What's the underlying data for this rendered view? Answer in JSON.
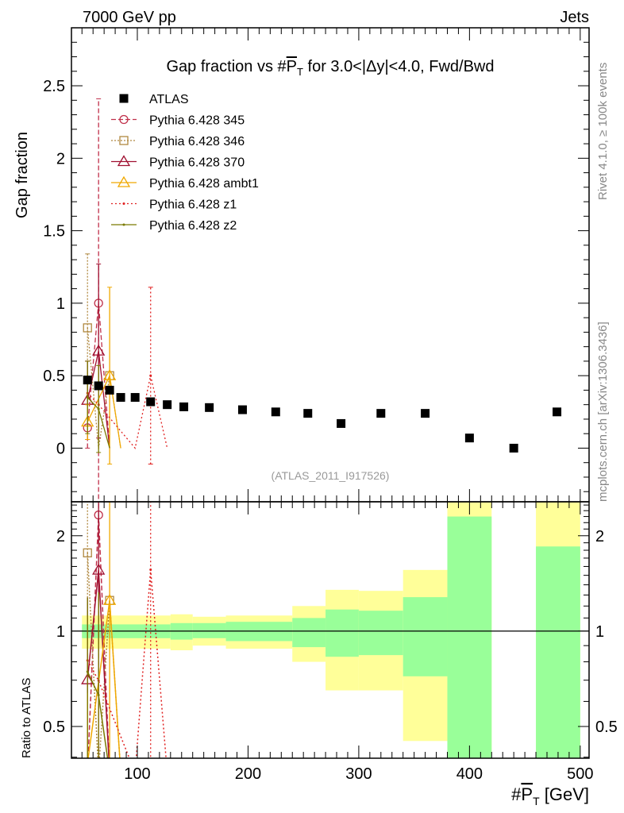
{
  "header": {
    "left": "7000 GeV pp",
    "right": "Jets"
  },
  "side": {
    "rivet": "Rivet 4.1.0, ≥ 100k events",
    "mcplots": "mcplots.cern.ch [arXiv:1306.3436]"
  },
  "chart_data": {
    "type": "scatter",
    "title_prefix": "Gap fraction vs #",
    "title_var": "P",
    "title_sub": "T",
    "title_suffix": " for 3.0<|Δy|<4.0, Fwd/Bwd",
    "ylabel": "Gap fraction",
    "ratio_ylabel": "Ratio to ATLAS",
    "xlabel_prefix": "#",
    "xlabel_var": "P",
    "xlabel_sub": "T",
    "xlabel_suffix": " [GeV]",
    "analysis_id": "(ATLAS_2011_I917526)",
    "xlim": [
      40.5,
      508
    ],
    "ylim": [
      -0.37,
      2.9
    ],
    "ratio_ylim": [
      0.397,
      2.56
    ],
    "ratio_scale": "log",
    "xticks": [
      "100",
      "200",
      "300",
      "400",
      "500"
    ],
    "xtick_values": [
      100,
      200,
      300,
      400,
      500
    ],
    "yticks": [
      "0",
      "0.5",
      "1",
      "1.5",
      "2",
      "2.5"
    ],
    "ytick_values": [
      0,
      0.5,
      1,
      1.5,
      2,
      2.5
    ],
    "ratio_yticks": [
      "0.5",
      "1",
      "2"
    ],
    "ratio_ytick_values": [
      0.5,
      1,
      2
    ],
    "data": {
      "name": "ATLAS",
      "x": [
        55,
        65,
        75,
        85,
        98,
        112,
        127,
        142,
        165,
        195,
        225,
        254,
        284,
        320,
        360,
        400,
        440,
        479
      ],
      "y": [
        0.47,
        0.43,
        0.4,
        0.35,
        0.35,
        0.32,
        0.3,
        0.285,
        0.28,
        0.265,
        0.25,
        0.24,
        0.17,
        0.24,
        0.24,
        0.07,
        0.0,
        0.25
      ]
    },
    "ratio_bands": [
      {
        "x": [
          50,
          130
        ],
        "green": [
          0.95,
          1.05
        ],
        "yellow": [
          0.88,
          1.12
        ]
      },
      {
        "x": [
          130,
          150
        ],
        "green": [
          0.94,
          1.06
        ],
        "yellow": [
          0.87,
          1.13
        ]
      },
      {
        "x": [
          150,
          180
        ],
        "green": [
          0.95,
          1.06
        ],
        "yellow": [
          0.9,
          1.11
        ]
      },
      {
        "x": [
          180,
          240
        ],
        "green": [
          0.93,
          1.07
        ],
        "yellow": [
          0.88,
          1.12
        ]
      },
      {
        "x": [
          240,
          270
        ],
        "green": [
          0.89,
          1.1
        ],
        "yellow": [
          0.8,
          1.2
        ]
      },
      {
        "x": [
          270,
          300
        ],
        "green": [
          0.83,
          1.17
        ],
        "yellow": [
          0.65,
          1.35
        ]
      },
      {
        "x": [
          300,
          340
        ],
        "green": [
          0.84,
          1.16
        ],
        "yellow": [
          0.65,
          1.34
        ]
      },
      {
        "x": [
          340,
          380
        ],
        "green": [
          0.72,
          1.28
        ],
        "yellow": [
          0.45,
          1.56
        ]
      },
      {
        "x": [
          380,
          420
        ],
        "green": [
          0.3,
          2.3
        ],
        "yellow": [
          0.3,
          3
        ]
      },
      {
        "x": [
          460,
          500
        ],
        "green": [
          0.3,
          1.85
        ],
        "yellow": [
          0.3,
          3
        ]
      }
    ],
    "series": [
      {
        "name": "Pythia 6.428 345",
        "color": "#c0304a",
        "dash": "6,3",
        "marker": "circle",
        "x": [
          55,
          65,
          75
        ],
        "y": [
          0.14,
          1.0,
          0
        ],
        "err": [
          [
            0.0,
            0.6
          ],
          [
            -0.4,
            2.41
          ],
          [
            0,
            0
          ]
        ]
      },
      {
        "name": "Pythia 6.428 346",
        "color": "#b08840",
        "dash": "2,2",
        "marker": "square",
        "x": [
          55,
          65,
          75,
          85
        ],
        "y": [
          0.83,
          0,
          0.5,
          0
        ],
        "err": [
          [
            0.3,
            1.34
          ],
          [
            0,
            0
          ],
          [
            0.5,
            0.5
          ],
          [
            0,
            0
          ]
        ]
      },
      {
        "name": "Pythia 6.428 370",
        "color": "#a01030",
        "dash": "",
        "marker": "triangle",
        "x": [
          55,
          65,
          75
        ],
        "y": [
          0.33,
          0.67,
          0
        ],
        "err": [
          [
            0.06,
            0.6
          ],
          [
            0.07,
            1.27
          ],
          [
            0,
            0
          ]
        ]
      },
      {
        "name": "Pythia 6.428 ambt1",
        "color": "#f0a800",
        "dash": "",
        "marker": "triangle",
        "x": [
          55,
          75,
          85
        ],
        "y": [
          0.18,
          0.5,
          0
        ],
        "err": [
          [
            0.06,
            0.3
          ],
          [
            -0.11,
            1.11
          ],
          [
            0,
            0
          ]
        ]
      },
      {
        "name": "Pythia 6.428 z1",
        "color": "#e02020",
        "dash": "2,3",
        "marker": "dot",
        "x": [
          55,
          65,
          98,
          112,
          127
        ],
        "y": [
          0.38,
          0.3,
          0,
          0.5,
          0
        ],
        "err": [
          [
            0.38,
            0.38
          ],
          [
            0.3,
            0.3
          ],
          [
            0,
            0
          ],
          [
            -0.11,
            1.11
          ],
          [
            0,
            0
          ]
        ]
      },
      {
        "name": "Pythia 6.428 z2",
        "color": "#7a7a00",
        "dash": "",
        "marker": "dot",
        "x": [
          55,
          65,
          75
        ],
        "y": [
          0.35,
          0.27,
          0
        ],
        "err": [
          [
            0.1,
            0.6
          ],
          [
            -0.03,
            0.57
          ],
          [
            0,
            0
          ]
        ]
      }
    ]
  }
}
